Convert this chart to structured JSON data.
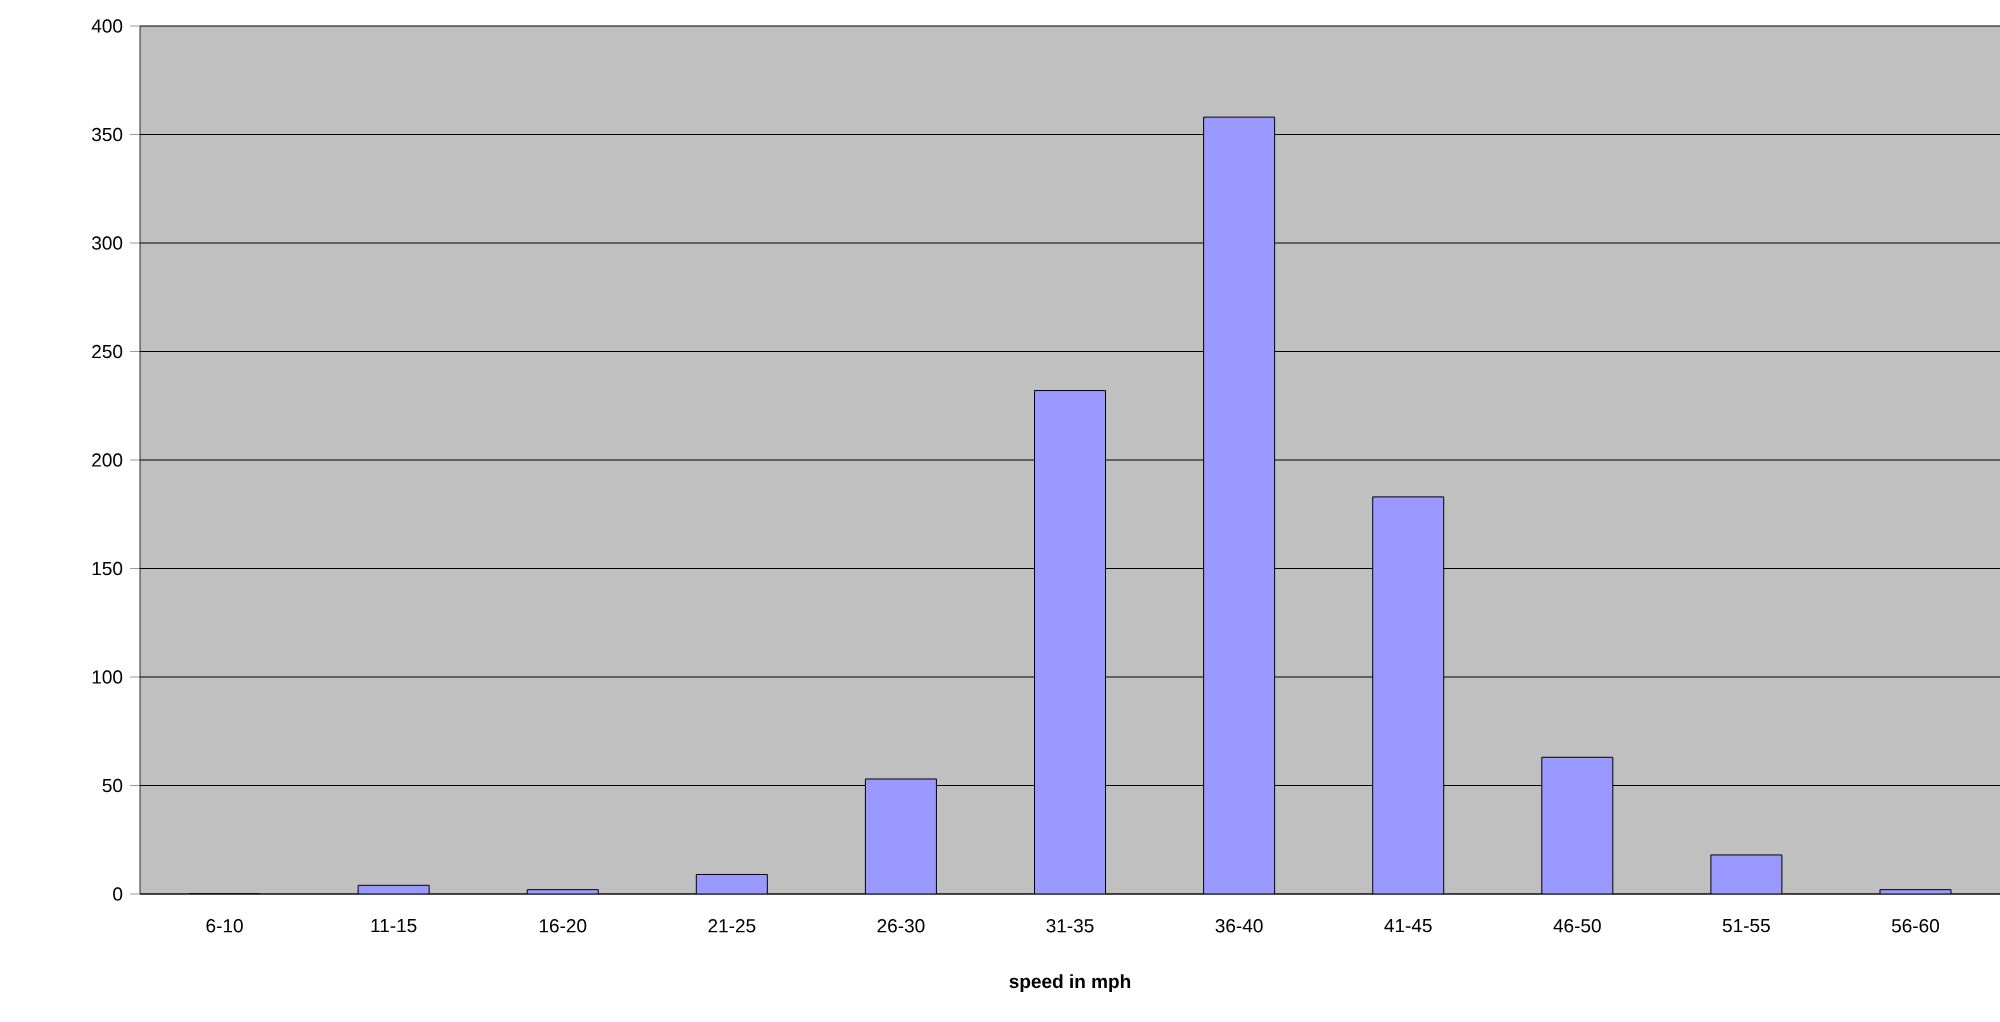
{
  "chart_data": {
    "type": "bar",
    "xlabel": "speed in mph",
    "categories": [
      "6-10",
      "11-15",
      "16-20",
      "21-25",
      "26-30",
      "31-35",
      "36-40",
      "41-45",
      "46-50",
      "51-55",
      "56-60"
    ],
    "values": [
      0,
      4,
      2,
      9,
      53,
      232,
      358,
      183,
      63,
      18,
      2
    ],
    "color": "#9999ff",
    "ylim": [
      0,
      400
    ],
    "yticks": [
      0,
      50,
      100,
      150,
      200,
      250,
      300,
      350,
      400
    ],
    "grid": "y",
    "legend": false
  }
}
